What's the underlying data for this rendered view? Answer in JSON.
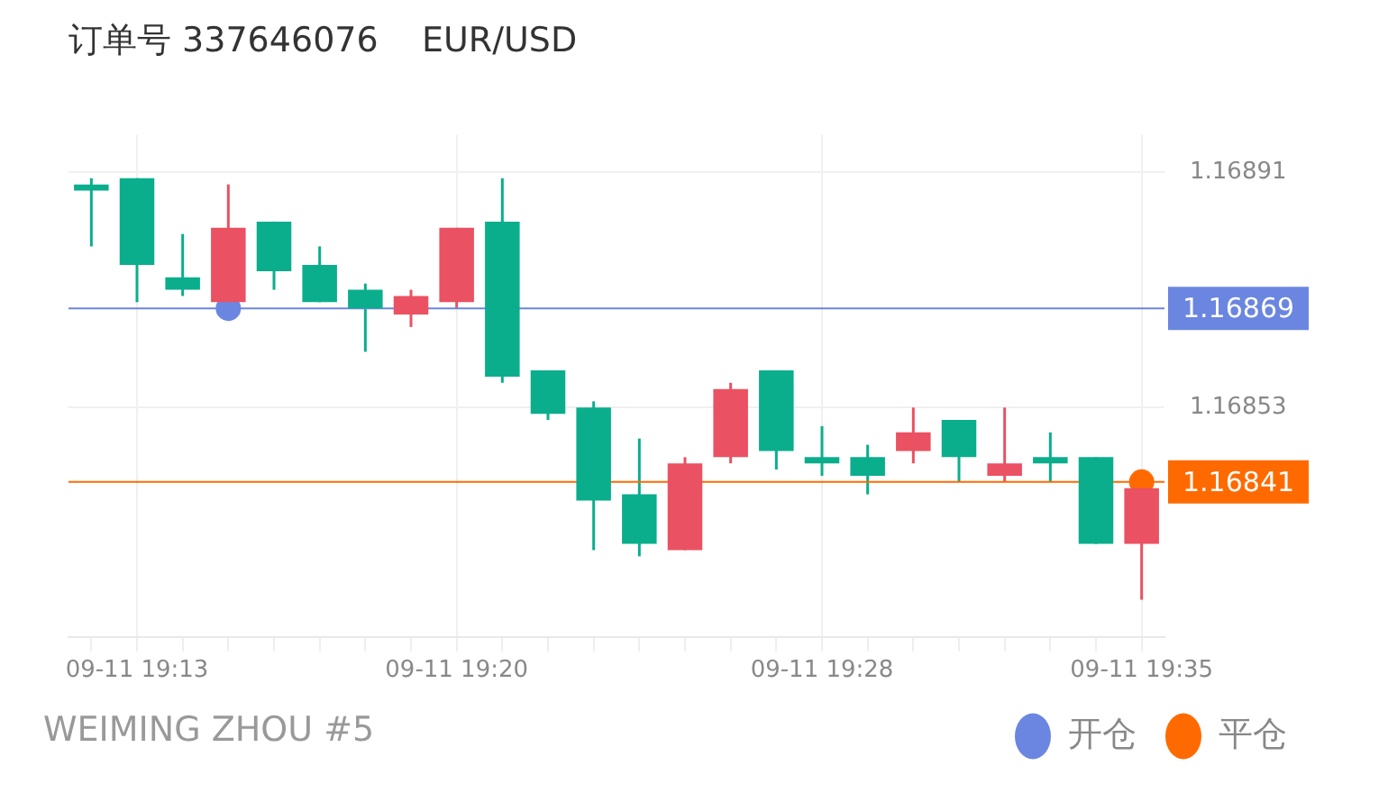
{
  "chart_data": {
    "type": "candlestick",
    "title": "订单号 337646076    EUR/USD",
    "categories": [
      null,
      "09-11 19:13",
      null,
      null,
      null,
      null,
      null,
      null,
      "09-11 19:20",
      null,
      null,
      null,
      null,
      null,
      null,
      null,
      "09-11 19:28",
      null,
      null,
      null,
      null,
      null,
      null,
      "09-11 19:35"
    ],
    "ohlc": [
      [
        1.16889,
        1.1689,
        1.16879,
        1.16888
      ],
      [
        1.1689,
        1.1689,
        1.1687,
        1.16876
      ],
      [
        1.16874,
        1.16881,
        1.16871,
        1.16872
      ],
      [
        1.1687,
        1.16889,
        1.1687,
        1.16882
      ],
      [
        1.16883,
        1.16883,
        1.16872,
        1.16875
      ],
      [
        1.16876,
        1.16879,
        1.1687,
        1.1687
      ],
      [
        1.16872,
        1.16873,
        1.16862,
        1.16869
      ],
      [
        1.16868,
        1.16872,
        1.16866,
        1.16871
      ],
      [
        1.1687,
        1.16882,
        1.16869,
        1.16882
      ],
      [
        1.16883,
        1.1689,
        1.16857,
        1.16858
      ],
      [
        1.16859,
        1.16859,
        1.16851,
        1.16852
      ],
      [
        1.16853,
        1.16854,
        1.1683,
        1.16838
      ],
      [
        1.16839,
        1.16848,
        1.16829,
        1.16831
      ],
      [
        1.1683,
        1.16845,
        1.1683,
        1.16844
      ],
      [
        1.16845,
        1.16857,
        1.16844,
        1.16856
      ],
      [
        1.16859,
        1.16859,
        1.16843,
        1.16846
      ],
      [
        1.16845,
        1.1685,
        1.16842,
        1.16844
      ],
      [
        1.16845,
        1.16847,
        1.16839,
        1.16842
      ],
      [
        1.16846,
        1.16853,
        1.16844,
        1.16849
      ],
      [
        1.16851,
        1.16851,
        1.16841,
        1.16845
      ],
      [
        1.16842,
        1.16853,
        1.16841,
        1.16844
      ],
      [
        1.16845,
        1.16849,
        1.16841,
        1.16844
      ],
      [
        1.16845,
        1.16845,
        1.16831,
        1.16831
      ],
      [
        1.16831,
        1.1684,
        1.16822,
        1.1684
      ]
    ],
    "colors": [
      "#0aae8c",
      "#0aae8c",
      "#0aae8c",
      "#ea5162",
      "#0aae8c",
      "#0aae8c",
      "#0aae8c",
      "#ea5162",
      "#ea5162",
      "#0aae8c",
      "#0aae8c",
      "#0aae8c",
      "#0aae8c",
      "#ea5162",
      "#ea5162",
      "#0aae8c",
      "#0aae8c",
      "#0aae8c",
      "#ea5162",
      "#0aae8c",
      "#ea5162",
      "#0aae8c",
      "#0aae8c",
      "#ea5162"
    ],
    "series": [
      {
        "type": "scatter",
        "name": "开仓",
        "color": "#6b86e0",
        "values": [
          null,
          null,
          null,
          1.16869,
          null,
          null,
          null,
          null,
          null,
          null,
          null,
          null,
          null,
          null,
          null,
          null,
          null,
          null,
          null,
          null,
          null,
          null,
          null,
          null
        ]
      },
      {
        "type": "scatter",
        "name": "平仓",
        "color": "#ff6a00",
        "values": [
          null,
          null,
          null,
          null,
          null,
          null,
          null,
          null,
          null,
          null,
          null,
          null,
          null,
          null,
          null,
          null,
          null,
          null,
          null,
          null,
          null,
          null,
          null,
          1.16841
        ]
      }
    ],
    "ylim": [
      1.16816,
      1.16897
    ],
    "yticks": [
      1.16891,
      1.16853
    ],
    "ref_lines": [
      {
        "axis": "y",
        "value": 1.16869,
        "label": "1.16869",
        "color": "#6b86e0"
      },
      {
        "axis": "y",
        "value": 1.16841,
        "label": "1.16841",
        "color": "#ff6a00"
      }
    ],
    "grid": true,
    "legend": "bottom right",
    "marker": "circle",
    "annotations": [
      "WEIMING ZHOU #5"
    ]
  }
}
